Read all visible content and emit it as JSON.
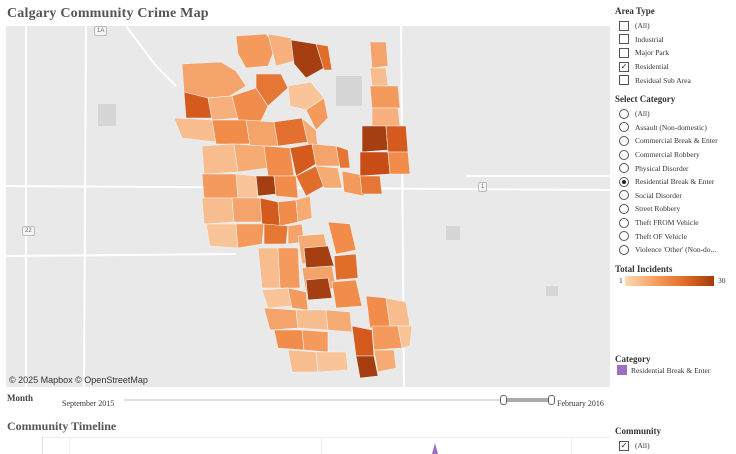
{
  "map": {
    "title": "Calgary Community Crime Map",
    "attribution": "© 2025 Mapbox © OpenStreetMap",
    "road_labels": [
      "1A",
      "1",
      "22"
    ]
  },
  "filters": {
    "area_type": {
      "title": "Area Type",
      "options": [
        {
          "label": "(All)",
          "checked": false
        },
        {
          "label": "Industrial",
          "checked": false
        },
        {
          "label": "Major Park",
          "checked": false
        },
        {
          "label": "Residential",
          "checked": true
        },
        {
          "label": "Residual Sub Area",
          "checked": false
        }
      ]
    },
    "category": {
      "title": "Select Category",
      "options": [
        {
          "label": "(All)",
          "selected": false
        },
        {
          "label": "Assault (Non-domestic)",
          "selected": false
        },
        {
          "label": "Commercial Break & Enter",
          "selected": false
        },
        {
          "label": "Commercial Robbery",
          "selected": false
        },
        {
          "label": "Physical Disorder",
          "selected": false
        },
        {
          "label": "Residential Break & Enter",
          "selected": true
        },
        {
          "label": "Social Disorder",
          "selected": false
        },
        {
          "label": "Street Robbery",
          "selected": false
        },
        {
          "label": "Theft FROM Vehicle",
          "selected": false
        },
        {
          "label": "Theft OF Vehicle",
          "selected": false
        },
        {
          "label": "Violence 'Other' (Non-do...",
          "selected": false
        }
      ]
    }
  },
  "legend": {
    "title": "Total Incidents",
    "min": "1",
    "max": "30",
    "colors": [
      "#fcd9b6",
      "#f7a062",
      "#e26b27",
      "#a33d0c"
    ]
  },
  "category_legend": {
    "title": "Category",
    "item": "Residential Break & Enter",
    "color": "#9b6fc2"
  },
  "month": {
    "label": "Month",
    "start": "September 2015",
    "end": "February 2016"
  },
  "timeline": {
    "title": "Community Timeline"
  },
  "community": {
    "title": "Community",
    "options": [
      {
        "label": "(All)",
        "checked": true
      }
    ]
  }
}
